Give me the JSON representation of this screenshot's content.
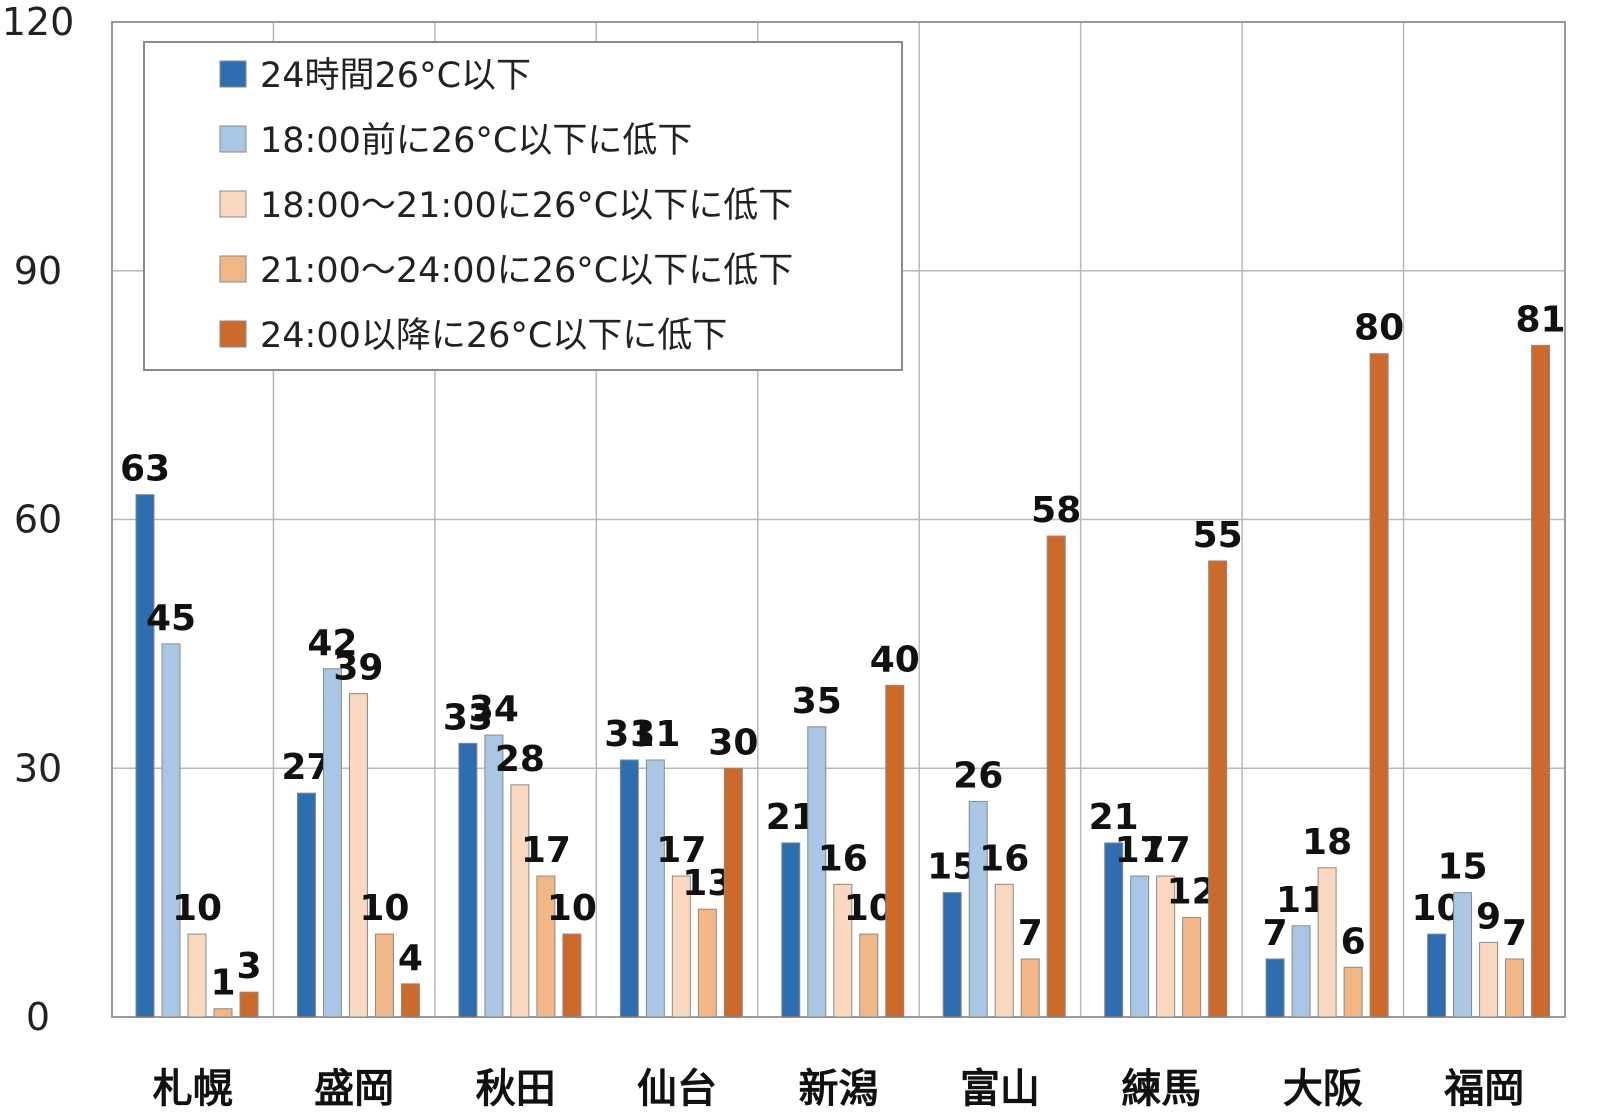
{
  "chart_data": {
    "type": "bar",
    "categories": [
      "札幌",
      "盛岡",
      "秋田",
      "仙台",
      "新潟",
      "富山",
      "練馬",
      "大阪",
      "福岡"
    ],
    "series": [
      {
        "name": "24時間26°C以下",
        "color": "#2e6db0",
        "values": [
          63,
          27,
          33,
          31,
          21,
          15,
          21,
          7,
          10
        ]
      },
      {
        "name": "18:00前に26°C以下に低下",
        "color": "#a9c6e5",
        "values": [
          45,
          42,
          34,
          31,
          35,
          26,
          17,
          11,
          15
        ]
      },
      {
        "name": "18:00～21:00に26°C以下に低下",
        "color": "#f9d8bf",
        "values": [
          10,
          39,
          28,
          17,
          16,
          16,
          17,
          18,
          9
        ]
      },
      {
        "name": "21:00～24:00に26°C以下に低下",
        "color": "#f2b786",
        "values": [
          1,
          10,
          17,
          13,
          10,
          7,
          12,
          6,
          7
        ]
      },
      {
        "name": "24:00以降に26°C以下に低下",
        "color": "#cc6a2b",
        "values": [
          3,
          4,
          10,
          30,
          40,
          58,
          55,
          80,
          81
        ]
      }
    ],
    "yticks": [
      "0",
      "30",
      "60",
      "90",
      "120"
    ],
    "ylim": [
      0,
      120
    ],
    "grid": true,
    "legend_position": "top-left"
  }
}
